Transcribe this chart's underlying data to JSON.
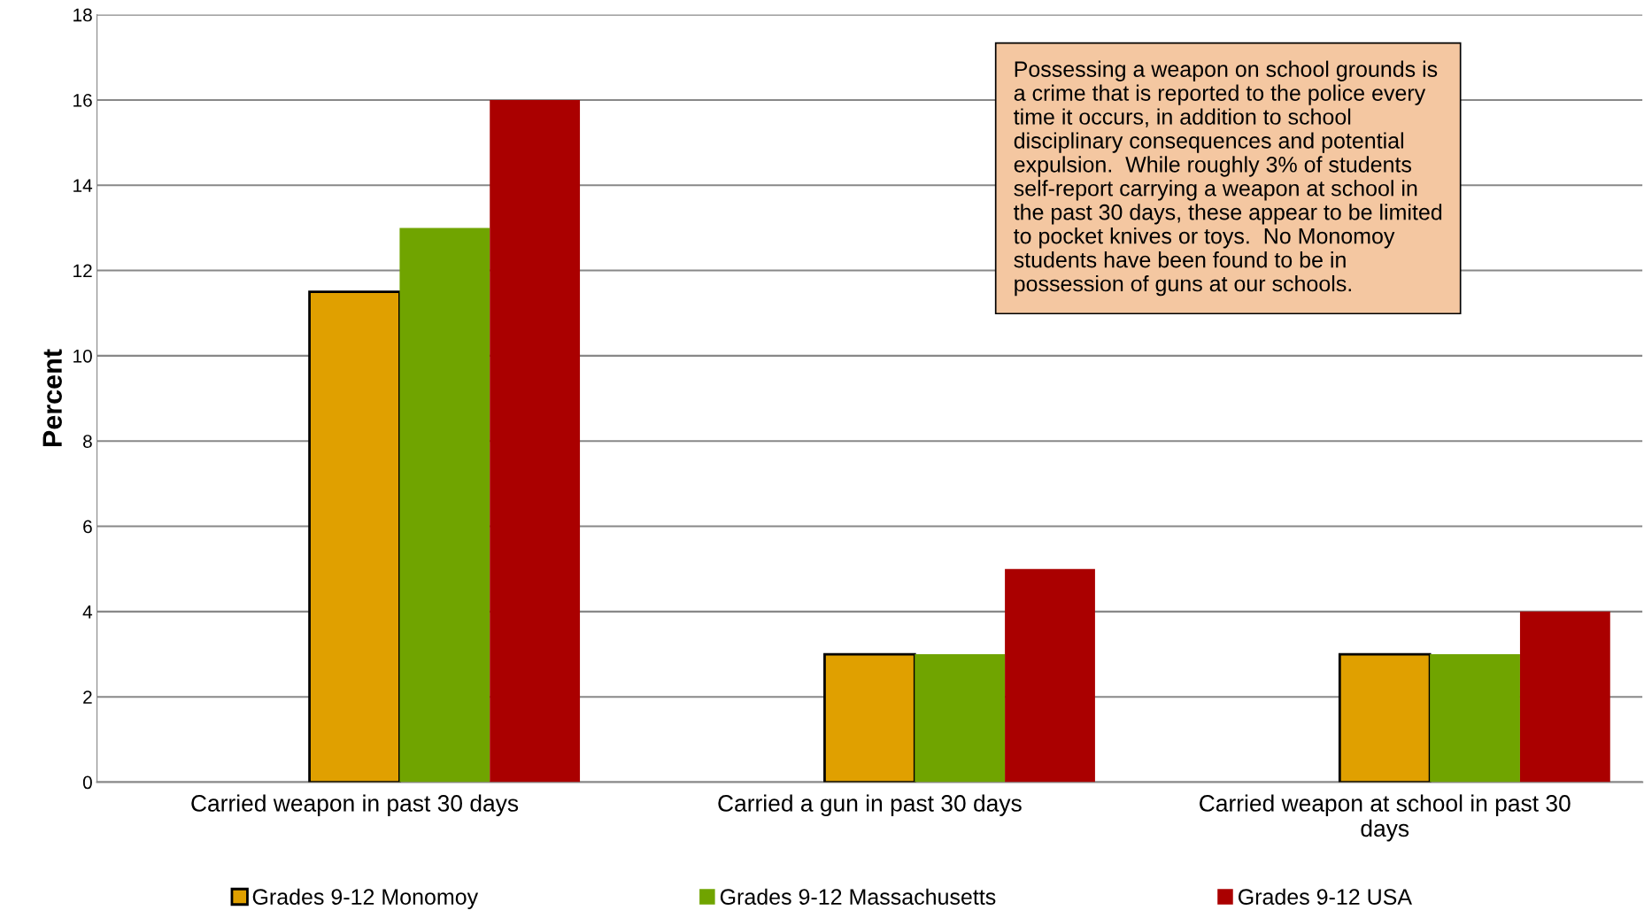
{
  "chart_data": {
    "type": "bar",
    "ylabel": "Percent",
    "categories": [
      "Carried weapon in past 30 days",
      "Carried a gun in past 30 days",
      "Carried weapon at school in past 30\ndays"
    ],
    "series": [
      {
        "name": "Grades 9-12 Monomoy",
        "color": "#e0a000",
        "values": [
          11.5,
          3,
          3
        ]
      },
      {
        "name": "Grades 9-12 Massachusetts",
        "color": "#70a400",
        "values": [
          13,
          3,
          3
        ]
      },
      {
        "name": "Grades 9-12 USA",
        "color": "#aa0000",
        "values": [
          16,
          5,
          4
        ]
      }
    ],
    "ylim": [
      0,
      18
    ],
    "yticks": [
      0,
      2,
      4,
      6,
      8,
      10,
      12,
      14,
      16,
      18
    ],
    "grid": "y",
    "legend": "bottom",
    "annotations": [
      "Possessing a weapon on school grounds is\na crime that is reported to the police every\ntime it occurs, in addition to school\ndisciplinary consequences and potential\nexpulsion.  While roughly 3% of students\nself-report carrying a weapon at school in\nthe past 30 days, these appear to be limited\nto pocket knives or toys.  No Monomoy\nstudents have been found to be in\npossession of guns at our schools."
    ]
  }
}
